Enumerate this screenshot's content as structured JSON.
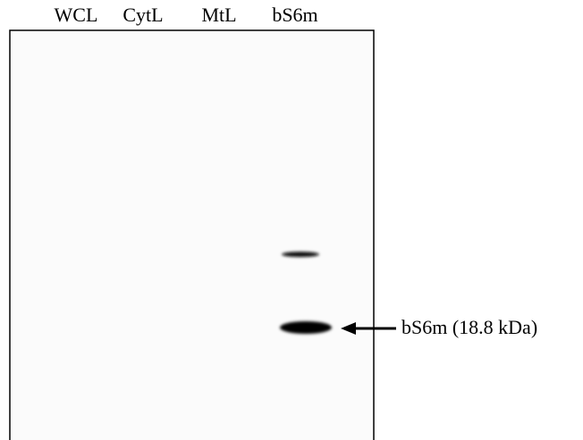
{
  "lanes": [
    "WCL",
    "CytL",
    "MtL",
    "bS6m"
  ],
  "annotation": {
    "label": "bS6m (18.8 kDa)"
  }
}
